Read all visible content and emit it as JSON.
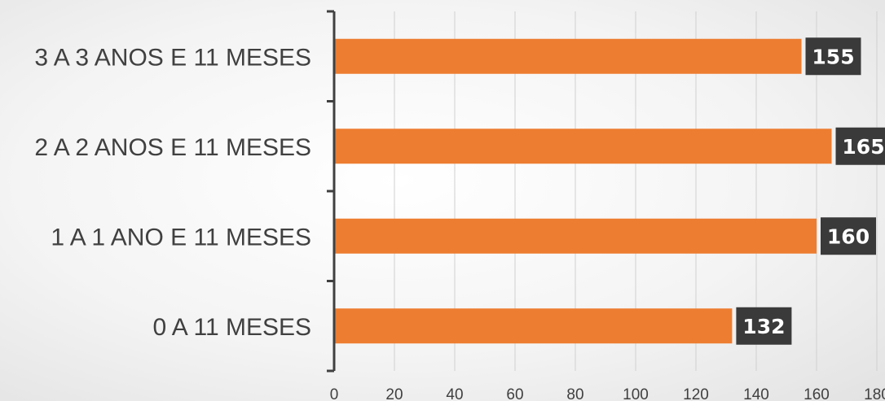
{
  "chart_data": {
    "type": "bar",
    "orientation": "horizontal",
    "categories": [
      "3 A 3 ANOS E 11 MESES",
      "2 A 2 ANOS E 11 MESES",
      "1 A 1 ANO E 11 MESES",
      "0 A 11 MESES"
    ],
    "values": [
      155,
      165,
      160,
      132
    ],
    "data_labels": [
      "155",
      "165",
      "160",
      "132"
    ],
    "x_ticks": [
      "0",
      "20",
      "40",
      "60",
      "80",
      "100",
      "120",
      "140",
      "160",
      "180"
    ],
    "xlim": [
      0,
      180
    ],
    "grid": true,
    "legend": "none",
    "title": "",
    "xlabel": "",
    "ylabel": "",
    "colors": {
      "bar": "#ED7D31",
      "data_label_bg": "#3a3a3a",
      "data_label_text": "#ffffff",
      "grid": "#d0d0d0",
      "axis": "#404040",
      "text": "#404040"
    }
  }
}
